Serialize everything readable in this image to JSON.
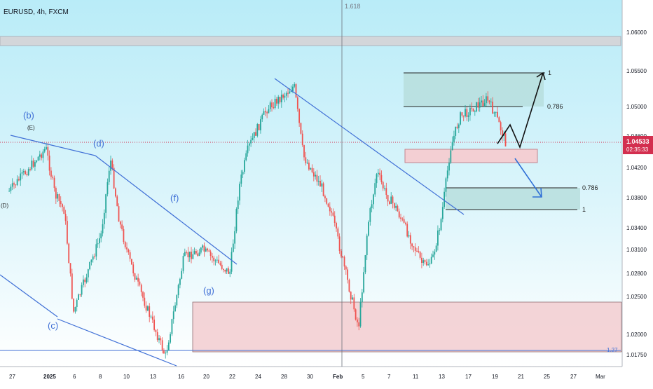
{
  "header": {
    "symbol_title": "EURUSD, 4h, FXCM",
    "crosshair_label": "1.618"
  },
  "price_axis": {
    "labels": [
      "1.06000",
      "1.05500",
      "1.05000",
      "1.04600",
      "1.04200",
      "1.03800",
      "1.03400",
      "1.03100",
      "1.02800",
      "1.02500",
      "1.02000",
      "1.01750"
    ]
  },
  "current_price": {
    "value": "1.04533",
    "countdown": "02:35:33",
    "color": "#d32f4f"
  },
  "time_axis": {
    "labels": [
      "27",
      "2025",
      "6",
      "8",
      "10",
      "13",
      "16",
      "20",
      "22",
      "24",
      "28",
      "30",
      "Feb",
      "5",
      "7",
      "11",
      "13",
      "17",
      "19",
      "21",
      "25",
      "27",
      "Mar"
    ]
  },
  "wave_labels": {
    "b": "(b)",
    "E": "(E)",
    "d": "(d)",
    "D": "(D)",
    "c": "(c)",
    "f": "(f)",
    "g": "(g)"
  },
  "fib_labels": {
    "upper_one": "1",
    "upper_0786": "0.786",
    "lower_0786": "0.786",
    "lower_one": "1",
    "bottom_1_27": "1.27"
  },
  "colors": {
    "bullish": "#26a69a",
    "bearish": "#ef5350",
    "trendline": "#3f6fd6",
    "zone_teal": "#b7dedd",
    "zone_pink": "#f3cfd3",
    "zone_grey": "#d3d6da",
    "background_top": "#b9ecf8",
    "background_bottom": "#ffffff"
  },
  "chart_data": {
    "type": "candlestick",
    "symbol": "EURUSD",
    "timeframe": "4h",
    "source": "FXCM",
    "y_range": [
      1.0165,
      1.0635
    ],
    "x_range": [
      "2024-12-26",
      "2025-03-02"
    ],
    "last_price": 1.04533,
    "price_path": [
      {
        "date": "2024-12-27",
        "price": 1.039
      },
      {
        "date": "2024-12-31",
        "price": 1.0445
      },
      {
        "date": "2025-01-01",
        "price": 1.0385
      },
      {
        "date": "2025-01-02",
        "price": 1.0365
      },
      {
        "date": "2025-01-03",
        "price": 1.0235
      },
      {
        "date": "2025-01-06",
        "price": 1.0335
      },
      {
        "date": "2025-01-07",
        "price": 1.0432
      },
      {
        "date": "2025-01-08",
        "price": 1.035
      },
      {
        "date": "2025-01-09",
        "price": 1.0305
      },
      {
        "date": "2025-01-10",
        "price": 1.027
      },
      {
        "date": "2025-01-13",
        "price": 1.0178
      },
      {
        "date": "2025-01-15",
        "price": 1.0305
      },
      {
        "date": "2025-01-17",
        "price": 1.0315
      },
      {
        "date": "2025-01-20",
        "price": 1.0285
      },
      {
        "date": "2025-01-21",
        "price": 1.0395
      },
      {
        "date": "2025-01-22",
        "price": 1.0445
      },
      {
        "date": "2025-01-24",
        "price": 1.0495
      },
      {
        "date": "2025-01-27",
        "price": 1.0525
      },
      {
        "date": "2025-01-28",
        "price": 1.0435
      },
      {
        "date": "2025-01-30",
        "price": 1.0395
      },
      {
        "date": "2025-01-31",
        "price": 1.0365
      },
      {
        "date": "2025-02-03",
        "price": 1.0215
      },
      {
        "date": "2025-02-04",
        "price": 1.0345
      },
      {
        "date": "2025-02-05",
        "price": 1.0415
      },
      {
        "date": "2025-02-06",
        "price": 1.0385
      },
      {
        "date": "2025-02-07",
        "price": 1.037
      },
      {
        "date": "2025-02-10",
        "price": 1.0295
      },
      {
        "date": "2025-02-11",
        "price": 1.03
      },
      {
        "date": "2025-02-12",
        "price": 1.0355
      },
      {
        "date": "2025-02-13",
        "price": 1.0445
      },
      {
        "date": "2025-02-14",
        "price": 1.0485
      },
      {
        "date": "2025-02-17",
        "price": 1.0508
      },
      {
        "date": "2025-02-18",
        "price": 1.0485
      },
      {
        "date": "2025-02-19",
        "price": 1.0453
      }
    ],
    "zones": [
      {
        "color": "grey",
        "from": 1.0586,
        "to": 1.0598
      },
      {
        "color": "teal",
        "from": 1.05,
        "to": 1.0548
      },
      {
        "color": "pink",
        "from": 1.0428,
        "to": 1.0445
      },
      {
        "color": "teal",
        "from": 1.0365,
        "to": 1.0395
      },
      {
        "color": "pink",
        "from": 1.0178,
        "to": 1.0243
      }
    ],
    "fib_levels": [
      {
        "label": "1",
        "price": 1.0548
      },
      {
        "label": "0.786",
        "price": 1.05
      },
      {
        "label": "0.786",
        "price": 1.0395
      },
      {
        "label": "1",
        "price": 1.0365
      },
      {
        "label": "1.27",
        "price": 1.0178
      }
    ]
  }
}
